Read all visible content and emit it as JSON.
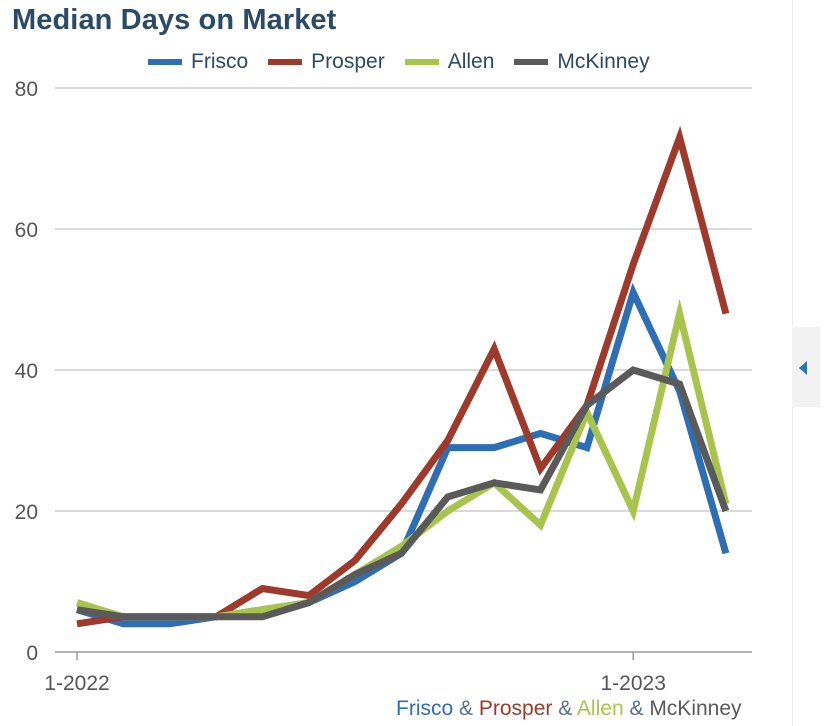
{
  "chart": {
    "title": "Median Days on Market"
  },
  "legend": [
    {
      "name": "Frisco",
      "color": "#2e6eb5"
    },
    {
      "name": "Prosper",
      "color": "#9e3a2c"
    },
    {
      "name": "Allen",
      "color": "#a9c44c"
    },
    {
      "name": "McKinney",
      "color": "#5a5a5a"
    }
  ],
  "footer": {
    "parts": [
      {
        "text": "Frisco",
        "color": "#2e6eb5"
      },
      {
        "text": " & ",
        "color": "#5a6e8a"
      },
      {
        "text": "Prosper",
        "color": "#9e3a2c"
      },
      {
        "text": " & ",
        "color": "#5a6e8a"
      },
      {
        "text": "Allen",
        "color": "#a9c44c"
      },
      {
        "text": " & ",
        "color": "#5a6e8a"
      },
      {
        "text": "McKinney",
        "color": "#5a5a5a"
      }
    ]
  },
  "side_panel": {
    "icon": "chevron-left-icon"
  },
  "chart_data": {
    "type": "line",
    "title": "Median Days on Market",
    "xlabel": "",
    "ylabel": "",
    "x": [
      "1-2022",
      "2-2022",
      "3-2022",
      "4-2022",
      "5-2022",
      "6-2022",
      "7-2022",
      "8-2022",
      "9-2022",
      "10-2022",
      "11-2022",
      "12-2022",
      "1-2023",
      "2-2023",
      "3-2023"
    ],
    "x_tick_labels": [
      "1-2022",
      "1-2023"
    ],
    "x_tick_label_indices": [
      0,
      12
    ],
    "ylim": [
      0,
      80
    ],
    "y_ticks": [
      0,
      20,
      40,
      60,
      80
    ],
    "grid": true,
    "legend_position": "top",
    "series": [
      {
        "name": "Frisco",
        "color": "#2e6eb5",
        "values": [
          6,
          4,
          4,
          5,
          6,
          7,
          10,
          14,
          29,
          29,
          31,
          29,
          51,
          37,
          14
        ]
      },
      {
        "name": "Prosper",
        "color": "#9e3a2c",
        "values": [
          4,
          5,
          5,
          5,
          9,
          8,
          13,
          21,
          30,
          43,
          26,
          35,
          55,
          73,
          48
        ]
      },
      {
        "name": "Allen",
        "color": "#a9c44c",
        "values": [
          7,
          5,
          5,
          5,
          6,
          7,
          11,
          15,
          20,
          24,
          18,
          34,
          20,
          48,
          21
        ]
      },
      {
        "name": "McKinney",
        "color": "#5a5a5a",
        "values": [
          6,
          5,
          5,
          5,
          5,
          7,
          11,
          14,
          22,
          24,
          23,
          35,
          40,
          38,
          20
        ]
      }
    ]
  }
}
